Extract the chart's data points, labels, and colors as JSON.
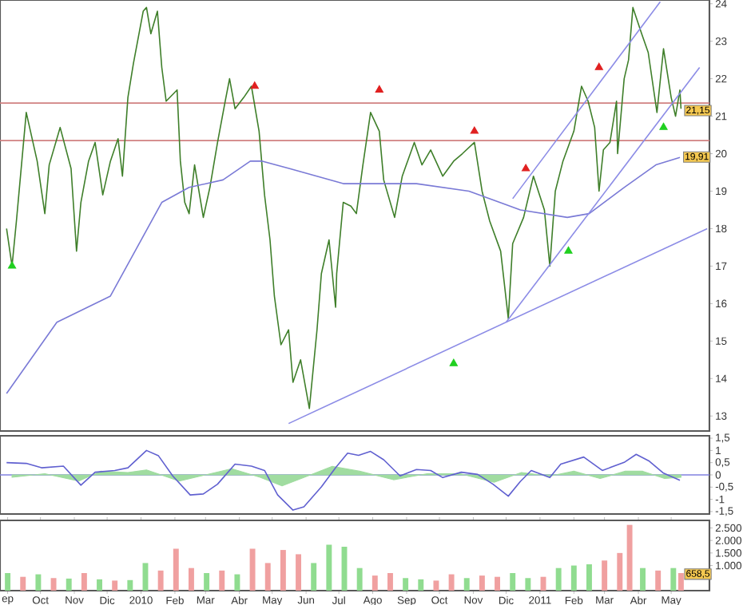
{
  "chart_data": [
    {
      "type": "line",
      "xlim": [
        "2009-08-25",
        "2011-06-05"
      ],
      "ylim": [
        12.6,
        24.1
      ],
      "tick_labels": "y",
      "yticks": [
        13,
        14,
        15,
        16,
        17,
        18,
        19,
        20,
        21,
        22,
        23,
        24
      ],
      "series": [
        {
          "color": "#3f7f2a",
          "x": [
            "2009-08-31",
            "2009-09-05",
            "2009-09-09",
            "2009-09-18",
            "2009-09-28",
            "2009-10-05",
            "2009-10-09",
            "2009-10-19",
            "2009-10-29",
            "2009-11-03",
            "2009-11-07",
            "2009-11-14",
            "2009-11-20",
            "2009-11-27",
            "2009-12-04",
            "2009-12-11",
            "2009-12-15",
            "2009-12-20",
            "2009-12-25",
            "2010-01-03",
            "2010-01-06",
            "2010-01-10",
            "2010-01-16",
            "2010-01-20",
            "2010-01-24",
            "2010-02-03",
            "2010-02-06",
            "2010-02-10",
            "2010-02-14",
            "2010-02-19",
            "2010-02-27",
            "2010-03-05",
            "2010-03-12",
            "2010-03-19",
            "2010-03-23",
            "2010-03-28",
            "2010-04-05",
            "2010-04-12",
            "2010-04-19",
            "2010-04-24",
            "2010-04-29",
            "2010-05-03",
            "2010-05-09",
            "2010-05-16",
            "2010-05-20",
            "2010-05-27",
            "2010-06-04",
            "2010-06-11",
            "2010-06-15",
            "2010-06-22",
            "2010-06-28",
            "2010-06-29",
            "2010-07-05",
            "2010-07-12",
            "2010-07-17",
            "2010-07-23",
            "2010-07-30",
            "2010-08-07",
            "2010-08-11",
            "2010-08-21",
            "2010-08-28",
            "2010-09-08",
            "2010-09-15",
            "2010-09-23",
            "2010-10-04",
            "2010-10-14",
            "2010-10-22",
            "2010-11-02",
            "2010-11-09",
            "2010-11-16",
            "2010-11-26",
            "2010-12-03",
            "2010-12-07",
            "2010-12-17",
            "2010-12-26",
            "2011-01-05",
            "2011-01-10",
            "2011-01-15",
            "2011-01-22",
            "2011-02-01",
            "2011-02-08",
            "2011-02-14",
            "2011-02-20",
            "2011-02-24",
            "2011-02-28",
            "2011-03-06",
            "2011-03-12",
            "2011-03-13",
            "2011-03-19",
            "2011-03-23",
            "2011-03-27",
            "2011-04-04",
            "2011-04-10",
            "2011-04-18",
            "2011-04-24",
            "2011-05-01",
            "2011-05-05",
            "2011-05-09",
            "2011-05-10"
          ],
          "values": [
            18.0,
            17.0,
            18.2,
            21.1,
            19.8,
            18.4,
            19.7,
            20.7,
            19.6,
            17.4,
            18.7,
            19.8,
            20.3,
            18.9,
            19.8,
            20.4,
            19.4,
            21.5,
            22.4,
            23.8,
            23.9,
            23.2,
            23.8,
            22.3,
            21.4,
            21.7,
            19.8,
            18.7,
            18.4,
            19.7,
            18.3,
            19.1,
            20.3,
            21.4,
            22.0,
            21.2,
            21.5,
            21.8,
            20.6,
            18.9,
            17.7,
            16.2,
            14.9,
            15.3,
            13.9,
            14.5,
            13.2,
            15.3,
            16.8,
            17.7,
            15.9,
            16.8,
            18.7,
            18.6,
            18.4,
            19.7,
            21.1,
            20.6,
            19.3,
            18.3,
            19.4,
            20.3,
            19.7,
            20.1,
            19.4,
            19.8,
            20.0,
            20.3,
            19.0,
            18.2,
            17.4,
            15.6,
            17.6,
            18.3,
            19.4,
            18.5,
            17.0,
            19.0,
            19.8,
            20.6,
            21.8,
            21.4,
            20.7,
            19.0,
            20.1,
            20.3,
            21.4,
            20.0,
            22.0,
            22.5,
            23.9,
            23.2,
            22.7,
            21.1,
            22.8,
            21.5,
            21.0,
            21.7,
            21.2
          ]
        },
        {
          "color": "#7a7ad6",
          "x": [
            "2009-08-31",
            "2009-10-16",
            "2009-12-04",
            "2010-01-20",
            "2010-02-14",
            "2010-03-17",
            "2010-04-11",
            "2010-04-22",
            "2010-05-17",
            "2010-07-05",
            "2010-08-07",
            "2010-09-10",
            "2010-10-28",
            "2010-12-14",
            "2011-01-26",
            "2011-02-15",
            "2011-03-19",
            "2011-04-17",
            "2011-05-09"
          ],
          "values": [
            13.6,
            15.5,
            16.2,
            18.7,
            19.1,
            19.3,
            19.8,
            19.8,
            19.6,
            19.2,
            19.2,
            19.2,
            19.0,
            18.5,
            18.3,
            18.4,
            19.1,
            19.7,
            19.9
          ]
        },
        {
          "color": "#8c8ce6",
          "x": [
            "2010-05-16",
            "2011-06-03"
          ],
          "values": [
            12.8,
            18.0
          ]
        },
        {
          "color": "#8c8ce6",
          "x": [
            "2010-12-07",
            "2011-04-21"
          ],
          "values": [
            18.8,
            24.05
          ]
        },
        {
          "color": "#8c8ce6",
          "x": [
            "2010-12-01",
            "2011-05-27"
          ],
          "values": [
            15.5,
            22.3
          ]
        },
        {
          "type": "scatter",
          "marker": "triangle",
          "color": "#e02020",
          "x": [
            "2010-04-15",
            "2010-08-07",
            "2010-11-02",
            "2010-12-19",
            "2011-02-24"
          ],
          "values": [
            21.8,
            21.7,
            20.6,
            19.6,
            22.3
          ]
        },
        {
          "type": "scatter",
          "marker": "triangle",
          "color": "#20d020",
          "x": [
            "2009-09-05",
            "2010-10-14",
            "2011-01-27",
            "2011-04-24"
          ],
          "values": [
            17.0,
            14.4,
            17.4,
            20.7
          ]
        }
      ],
      "ref_lines": [
        {
          "axis": "y",
          "value": 21.35,
          "color": "#d08080"
        },
        {
          "axis": "y",
          "value": 20.35,
          "color": "#d08080"
        }
      ],
      "annotations": [
        {
          "text": "21,15",
          "x": "2011-05-10",
          "y": 21.15
        },
        {
          "text": "19,91",
          "x": "2011-05-09",
          "y": 19.91
        }
      ]
    },
    {
      "type": "line",
      "xlim": [
        "2009-08-25",
        "2011-06-05"
      ],
      "ylim": [
        -1.6,
        1.6
      ],
      "tick_labels": "y",
      "yticks": [
        {
          "value": 1.5,
          "label": "1,5"
        },
        1,
        {
          "value": 0.5,
          "label": "0,5"
        },
        0,
        {
          "value": -0.5,
          "label": "-0,5"
        },
        -1,
        {
          "value": -1.5,
          "label": "-1,5"
        }
      ],
      "series": [
        {
          "type": "area",
          "color": "#a0dca0",
          "x": [
            "2009-09-05",
            "2009-10-05",
            "2009-11-05",
            "2009-11-25",
            "2009-12-20",
            "2010-01-06",
            "2010-02-05",
            "2010-03-01",
            "2010-03-25",
            "2010-04-20",
            "2010-05-10",
            "2010-06-05",
            "2010-06-25",
            "2010-07-20",
            "2010-08-20",
            "2010-09-20",
            "2010-10-20",
            "2010-11-20",
            "2010-12-15",
            "2011-01-10",
            "2011-02-01",
            "2011-02-25",
            "2011-03-20",
            "2011-04-05",
            "2011-04-25",
            "2011-05-10"
          ],
          "values": [
            -0.1,
            0.05,
            -0.25,
            0.15,
            0.1,
            0.2,
            -0.25,
            0.0,
            0.25,
            -0.1,
            -0.45,
            0.0,
            0.35,
            0.15,
            -0.2,
            0.05,
            0.05,
            -0.3,
            0.1,
            -0.05,
            0.15,
            -0.15,
            0.15,
            0.15,
            -0.15,
            -0.1
          ]
        },
        {
          "color": "#6060d0",
          "x": [
            "2009-08-31",
            "2009-09-18",
            "2009-10-02",
            "2009-10-22",
            "2009-11-07",
            "2009-11-20",
            "2009-12-08",
            "2009-12-20",
            "2010-01-06",
            "2010-01-17",
            "2010-01-30",
            "2010-02-15",
            "2010-02-27",
            "2010-03-12",
            "2010-03-28",
            "2010-04-12",
            "2010-04-24",
            "2010-05-06",
            "2010-05-20",
            "2010-05-30",
            "2010-06-15",
            "2010-06-28",
            "2010-07-09",
            "2010-07-19",
            "2010-07-30",
            "2010-08-11",
            "2010-08-26",
            "2010-09-10",
            "2010-09-23",
            "2010-10-04",
            "2010-10-21",
            "2010-11-05",
            "2010-11-19",
            "2010-12-03",
            "2010-12-14",
            "2010-12-24",
            "2011-01-10",
            "2011-01-20",
            "2011-02-10",
            "2011-02-27",
            "2011-03-19",
            "2011-03-30",
            "2011-04-11",
            "2011-04-24",
            "2011-05-09"
          ],
          "values": [
            0.5,
            0.47,
            0.29,
            0.36,
            -0.42,
            0.11,
            0.18,
            0.29,
            1.0,
            0.78,
            -0.04,
            -0.82,
            -0.78,
            -0.38,
            0.44,
            0.36,
            0.18,
            -0.82,
            -1.44,
            -1.31,
            -0.49,
            0.29,
            0.89,
            0.8,
            0.96,
            0.62,
            -0.04,
            0.22,
            0.18,
            -0.11,
            0.11,
            0.02,
            -0.38,
            -0.87,
            -0.27,
            0.18,
            -0.11,
            0.44,
            0.73,
            0.18,
            0.51,
            0.84,
            0.56,
            0.07,
            -0.22
          ]
        }
      ],
      "ref_lines": [
        {
          "axis": "y",
          "value": 0,
          "color": "#8080e0"
        }
      ]
    },
    {
      "type": "bar",
      "xlim": [
        "2009-08-25",
        "2011-06-05"
      ],
      "ylim": [
        0,
        2800
      ],
      "xticks": [
        {
          "value": "2009-09-01",
          "label": "ep"
        },
        {
          "value": "2009-10-01",
          "label": "Oct"
        },
        {
          "value": "2009-11-01",
          "label": "Nov"
        },
        {
          "value": "2009-12-01",
          "label": "Dic"
        },
        {
          "value": "2010-01-01",
          "label": "2010"
        },
        {
          "value": "2010-02-01",
          "label": "Feb"
        },
        {
          "value": "2010-03-01",
          "label": "Mar"
        },
        {
          "value": "2010-04-01",
          "label": "Abr"
        },
        {
          "value": "2010-05-01",
          "label": "May"
        },
        {
          "value": "2010-06-01",
          "label": "Jun"
        },
        {
          "value": "2010-07-01",
          "label": "Jul"
        },
        {
          "value": "2010-08-01",
          "label": "Ago"
        },
        {
          "value": "2010-09-01",
          "label": "Sep"
        },
        {
          "value": "2010-10-01",
          "label": "Oct"
        },
        {
          "value": "2010-11-01",
          "label": "Nov"
        },
        {
          "value": "2010-12-01",
          "label": "Dic"
        },
        {
          "value": "2011-01-01",
          "label": "2011"
        },
        {
          "value": "2011-02-01",
          "label": "Feb"
        },
        {
          "value": "2011-03-01",
          "label": "Mar"
        },
        {
          "value": "2011-04-01",
          "label": "Abr"
        },
        {
          "value": "2011-05-01",
          "label": "May"
        }
      ],
      "yticks": [
        {
          "value": 1000,
          "label": "1.000"
        },
        {
          "value": 1500,
          "label": "1.500"
        },
        {
          "value": 2000,
          "label": "2.000"
        },
        {
          "value": 2500,
          "label": "2.500"
        }
      ],
      "series": [
        {
          "x": [
            "2009-09-01",
            "2009-09-15",
            "2009-09-29",
            "2009-10-13",
            "2009-10-27",
            "2009-11-10",
            "2009-11-24",
            "2009-12-08",
            "2009-12-22",
            "2010-01-05",
            "2010-01-19",
            "2010-02-02",
            "2010-02-16",
            "2010-03-02",
            "2010-03-16",
            "2010-03-30",
            "2010-04-13",
            "2010-04-27",
            "2010-05-11",
            "2010-05-25",
            "2010-06-08",
            "2010-06-22",
            "2010-07-06",
            "2010-07-20",
            "2010-08-03",
            "2010-08-17",
            "2010-08-31",
            "2010-09-14",
            "2010-09-28",
            "2010-10-12",
            "2010-10-26",
            "2010-11-09",
            "2010-11-23",
            "2010-12-07",
            "2010-12-21",
            "2011-01-04",
            "2011-01-18",
            "2011-02-01",
            "2011-02-15",
            "2011-03-01",
            "2011-03-15",
            "2011-03-24",
            "2011-04-05",
            "2011-04-19",
            "2011-05-03",
            "2011-05-10"
          ],
          "values": [
            700,
            550,
            650,
            500,
            480,
            700,
            450,
            400,
            420,
            1100,
            800,
            1670,
            900,
            700,
            800,
            650,
            1670,
            1100,
            1620,
            1450,
            1100,
            1830,
            1750,
            900,
            600,
            700,
            500,
            450,
            400,
            650,
            500,
            600,
            550,
            700,
            500,
            550,
            900,
            1000,
            1050,
            1200,
            1500,
            2620,
            900,
            800,
            900,
            700
          ],
          "colors": [
            "#90dc90",
            "#f0a0a0",
            "#90dc90",
            "#f0a0a0",
            "#90dc90",
            "#f0a0a0",
            "#90dc90",
            "#f0a0a0",
            "#90dc90",
            "#90dc90",
            "#f0a0a0",
            "#f0a0a0",
            "#f0a0a0",
            "#90dc90",
            "#f0a0a0",
            "#90dc90",
            "#f0a0a0",
            "#f0a0a0",
            "#f0a0a0",
            "#f0a0a0",
            "#90dc90",
            "#90dc90",
            "#90dc90",
            "#90dc90",
            "#f0a0a0",
            "#f0a0a0",
            "#90dc90",
            "#90dc90",
            "#f0a0a0",
            "#f0a0a0",
            "#90dc90",
            "#f0a0a0",
            "#f0a0a0",
            "#90dc90",
            "#90dc90",
            "#f0a0a0",
            "#90dc90",
            "#90dc90",
            "#90dc90",
            "#f0a0a0",
            "#f0a0a0",
            "#f0a0a0",
            "#90dc90",
            "#f0a0a0",
            "#90dc90",
            "#f0a0a0"
          ]
        }
      ],
      "annotations": [
        {
          "text": "658,5",
          "x": "2011-05-10",
          "y": 658.5
        }
      ]
    }
  ]
}
